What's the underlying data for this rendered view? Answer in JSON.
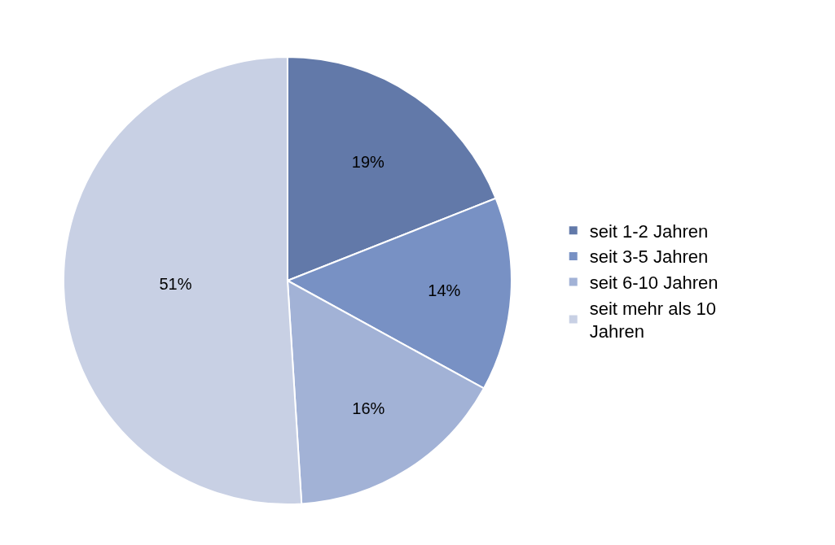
{
  "chart_data": {
    "type": "pie",
    "categories": [
      "seit 1-2 Jahren",
      "seit 3-5 Jahren",
      "seit 6-10 Jahren",
      "seit mehr als 10 Jahren"
    ],
    "values": [
      19,
      14,
      16,
      51
    ],
    "value_labels": [
      "19%",
      "14%",
      "16%",
      "51%"
    ],
    "colors": [
      "#6279a9",
      "#7891c4",
      "#a2b2d6",
      "#c8d0e4"
    ],
    "legend": "right"
  }
}
